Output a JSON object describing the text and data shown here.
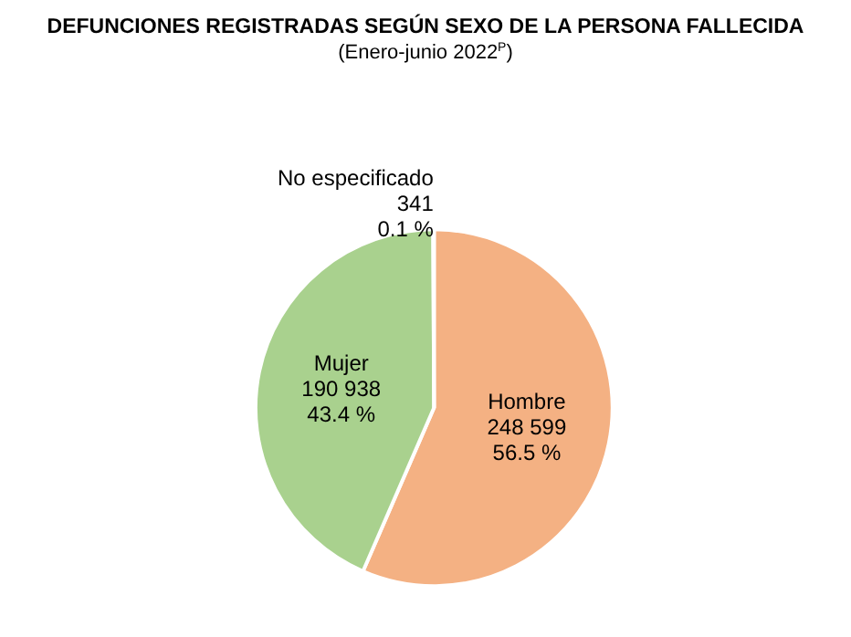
{
  "chart_data": {
    "type": "pie",
    "title": "DEFUNCIONES REGISTRADAS SEGÚN SEXO DE LA PERSONA FALLECIDA",
    "subtitle": "(Enero-junio 2022$^{P}$)",
    "categories": [
      "Hombre",
      "Mujer",
      "No especificado"
    ],
    "values": [
      248599,
      190938,
      341
    ],
    "colors": [
      "#f4b183",
      "#a9d18e",
      "#000000"
    ],
    "value_labels": [
      "248 599\n56.5 %",
      "190 938\n43.4 %",
      "341\n0.1 %"
    ],
    "legend": false
  }
}
